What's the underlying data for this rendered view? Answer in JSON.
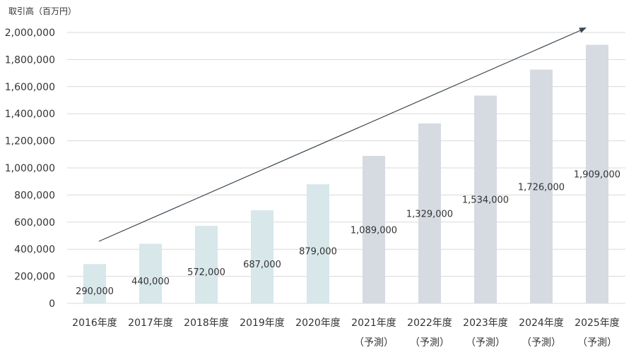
{
  "chart_data": {
    "type": "bar",
    "ylabel": "取引高（百万円）",
    "ylim": [
      0,
      2000000
    ],
    "yticks": [
      0,
      200000,
      400000,
      600000,
      800000,
      1000000,
      1200000,
      1400000,
      1600000,
      1800000,
      2000000
    ],
    "ytick_labels": [
      "0",
      "200,000",
      "400,000",
      "600,000",
      "800,000",
      "1,000,000",
      "1,200,000",
      "1,400,000",
      "1,600,000",
      "1,800,000",
      "2,000,000"
    ],
    "grid": true,
    "categories": [
      "2016年度",
      "2017年度",
      "2018年度",
      "2019年度",
      "2020年度",
      "2021年度",
      "2022年度",
      "2023年度",
      "2024年度",
      "2025年度"
    ],
    "subcategories": [
      "",
      "",
      "",
      "",
      "",
      "（予測）",
      "（予測）",
      "（予測）",
      "（予測）",
      "（予測）"
    ],
    "values": [
      290000,
      440000,
      572000,
      687000,
      879000,
      1089000,
      1329000,
      1534000,
      1726000,
      1909000
    ],
    "value_labels": [
      "290,000",
      "440,000",
      "572,000",
      "687,000",
      "879,000",
      "1,089,000",
      "1,329,000",
      "1,534,000",
      "1,726,000",
      "1,909,000"
    ],
    "forecast": [
      false,
      false,
      false,
      false,
      false,
      true,
      true,
      true,
      true,
      true
    ],
    "colors": {
      "actual": "#d7e7ea",
      "forecast": "#d6dbe2",
      "arrow": "#3a4650",
      "grid": "#d9d9d9"
    },
    "trend_arrow": true
  }
}
